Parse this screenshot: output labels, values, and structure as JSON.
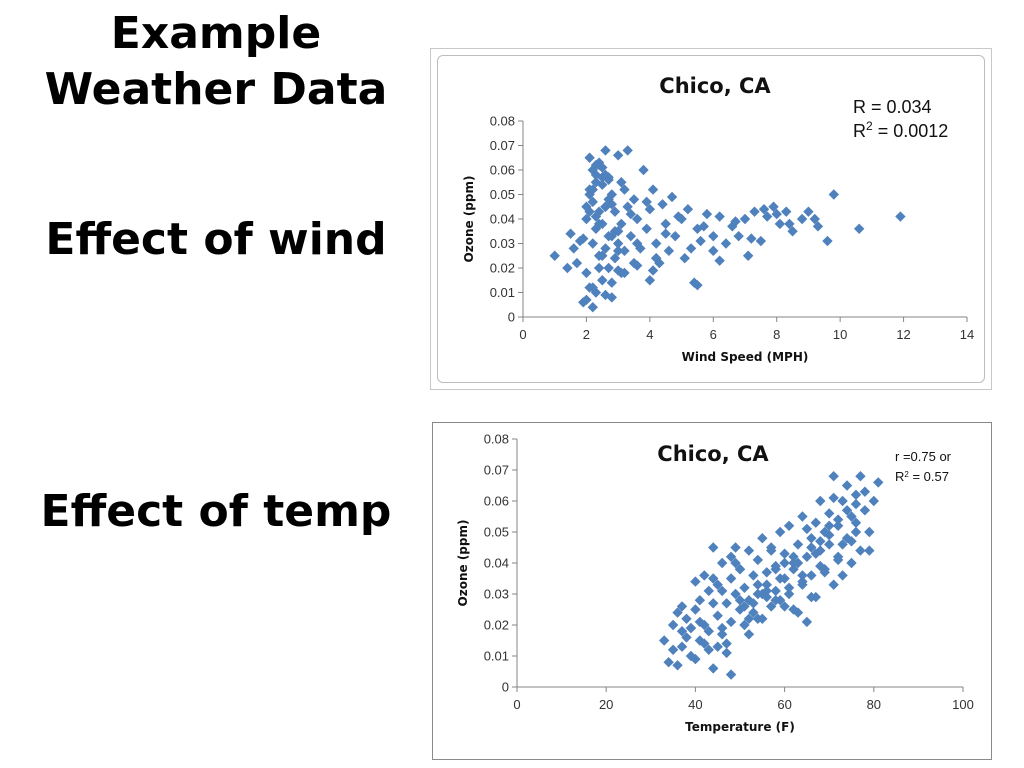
{
  "slide": {
    "title": "Example Weather Data",
    "section_wind": "Effect of wind",
    "section_temp": "Effect of temp"
  },
  "chart_data": [
    {
      "type": "scatter",
      "title": "Chico, CA",
      "xlabel": "Wind Speed (MPH)",
      "ylabel": "Ozone (ppm)",
      "xlim": [
        0,
        14
      ],
      "ylim": [
        0,
        0.08
      ],
      "x_ticks": [
        "0",
        "2",
        "4",
        "6",
        "8",
        "10",
        "12",
        "14"
      ],
      "y_ticks": [
        "0",
        "0.01",
        "0.02",
        "0.03",
        "0.04",
        "0.05",
        "0.06",
        "0.07",
        "0.08"
      ],
      "annotation": [
        "R = 0.034",
        "R",
        "2",
        " =  0.0012"
      ],
      "marker_color": "#4F81BD",
      "grid": false,
      "x": [
        1.0,
        1.4,
        1.5,
        1.6,
        1.7,
        1.8,
        1.9,
        2.0,
        2.0,
        2.0,
        2.1,
        2.1,
        2.1,
        2.2,
        2.2,
        2.2,
        2.3,
        2.3,
        2.3,
        2.4,
        2.4,
        2.4,
        2.5,
        2.5,
        2.5,
        2.6,
        2.6,
        2.6,
        2.7,
        2.7,
        2.7,
        2.8,
        2.8,
        2.9,
        2.9,
        3.0,
        3.0,
        3.1,
        3.1,
        3.2,
        3.2,
        3.3,
        3.3,
        3.4,
        3.5,
        3.5,
        3.6,
        3.7,
        3.8,
        3.9,
        4.0,
        4.0,
        4.1,
        4.2,
        4.3,
        4.4,
        4.5,
        4.6,
        4.7,
        4.8,
        5.0,
        5.1,
        5.2,
        5.4,
        5.5,
        5.6,
        5.8,
        6.0,
        6.0,
        6.2,
        6.4,
        6.6,
        6.8,
        7.0,
        7.1,
        7.3,
        7.5,
        7.7,
        7.9,
        8.1,
        8.3,
        8.5,
        8.8,
        9.0,
        9.3,
        9.6,
        9.8,
        10.6,
        11.9,
        1.9,
        2.1,
        2.3,
        2.5,
        2.7,
        2.9,
        3.1,
        3.4,
        3.6,
        3.9,
        4.2,
        4.5,
        4.9,
        5.3,
        5.7,
        6.2,
        6.7,
        7.2,
        7.6,
        8.0,
        8.4,
        9.2,
        2.2,
        2.4,
        2.6,
        2.8,
        3.0,
        2.1,
        2.3,
        2.5,
        2.2,
        2.4,
        2.6,
        2.8,
        3.2,
        3.6,
        4.1,
        2.0,
        2.2,
        2.4,
        2.6,
        2.8,
        3.0,
        2.3,
        2.5,
        2.7,
        5.5,
        3.0,
        4.2
      ],
      "y": [
        0.025,
        0.02,
        0.034,
        0.028,
        0.022,
        0.031,
        0.006,
        0.007,
        0.018,
        0.04,
        0.065,
        0.012,
        0.052,
        0.004,
        0.047,
        0.03,
        0.01,
        0.058,
        0.036,
        0.025,
        0.062,
        0.043,
        0.015,
        0.054,
        0.038,
        0.068,
        0.028,
        0.045,
        0.02,
        0.057,
        0.033,
        0.008,
        0.05,
        0.024,
        0.043,
        0.066,
        0.03,
        0.038,
        0.018,
        0.052,
        0.027,
        0.045,
        0.068,
        0.033,
        0.022,
        0.048,
        0.04,
        0.028,
        0.06,
        0.036,
        0.015,
        0.044,
        0.052,
        0.03,
        0.022,
        0.046,
        0.038,
        0.027,
        0.049,
        0.033,
        0.04,
        0.024,
        0.044,
        0.014,
        0.036,
        0.031,
        0.042,
        0.033,
        0.027,
        0.041,
        0.03,
        0.037,
        0.033,
        0.04,
        0.025,
        0.043,
        0.031,
        0.041,
        0.045,
        0.038,
        0.043,
        0.035,
        0.04,
        0.043,
        0.037,
        0.031,
        0.05,
        0.036,
        0.041,
        0.032,
        0.043,
        0.055,
        0.025,
        0.048,
        0.035,
        0.055,
        0.042,
        0.03,
        0.047,
        0.024,
        0.034,
        0.041,
        0.028,
        0.037,
        0.023,
        0.039,
        0.032,
        0.044,
        0.042,
        0.038,
        0.04,
        0.06,
        0.063,
        0.058,
        0.046,
        0.035,
        0.05,
        0.041,
        0.057,
        0.012,
        0.02,
        0.009,
        0.014,
        0.018,
        0.021,
        0.019,
        0.045,
        0.052,
        0.038,
        0.045,
        0.033,
        0.027,
        0.062,
        0.061,
        0.056,
        0.013,
        0.019,
        0.024
      ]
    },
    {
      "type": "scatter",
      "title": "Chico, CA",
      "xlabel": "Temperature (F)",
      "ylabel": "Ozone (ppm)",
      "xlim": [
        0,
        100
      ],
      "ylim": [
        0,
        0.08
      ],
      "x_ticks": [
        "0",
        "20",
        "40",
        "60",
        "80",
        "100"
      ],
      "y_ticks": [
        "0",
        "0.01",
        "0.02",
        "0.03",
        "0.04",
        "0.05",
        "0.06",
        "0.07",
        "0.08"
      ],
      "annotation": [
        "r =0.75 or",
        "R",
        "2",
        " = 0.57"
      ],
      "marker_color": "#4F81BD",
      "grid": false,
      "x": [
        33,
        34,
        35,
        35,
        36,
        36,
        37,
        37,
        38,
        38,
        39,
        39,
        40,
        40,
        41,
        41,
        42,
        42,
        43,
        43,
        44,
        44,
        45,
        45,
        46,
        46,
        47,
        47,
        48,
        48,
        48,
        49,
        49,
        50,
        50,
        51,
        51,
        52,
        52,
        53,
        53,
        54,
        54,
        55,
        55,
        56,
        56,
        57,
        57,
        58,
        58,
        59,
        59,
        60,
        60,
        61,
        61,
        62,
        62,
        63,
        63,
        64,
        64,
        65,
        65,
        66,
        66,
        67,
        67,
        68,
        68,
        69,
        69,
        70,
        70,
        71,
        71,
        72,
        72,
        73,
        73,
        74,
        74,
        75,
        75,
        76,
        76,
        77,
        77,
        78,
        78,
        79,
        80,
        81,
        40,
        42,
        44,
        46,
        50,
        52,
        54,
        56,
        58,
        60,
        62,
        64,
        66,
        68,
        70,
        72,
        74,
        76,
        44,
        48,
        52,
        56,
        60,
        64,
        68,
        72,
        76,
        41,
        45,
        49,
        53,
        57,
        61,
        65,
        69,
        73,
        37,
        39,
        43,
        47,
        51,
        55,
        59,
        63,
        67,
        71,
        75,
        79,
        46,
        50,
        54,
        58,
        62,
        66,
        70
      ],
      "y": [
        0.015,
        0.008,
        0.02,
        0.012,
        0.024,
        0.007,
        0.018,
        0.013,
        0.022,
        0.016,
        0.01,
        0.019,
        0.025,
        0.034,
        0.015,
        0.028,
        0.02,
        0.036,
        0.012,
        0.031,
        0.006,
        0.045,
        0.023,
        0.033,
        0.017,
        0.04,
        0.011,
        0.027,
        0.004,
        0.021,
        0.035,
        0.045,
        0.03,
        0.025,
        0.038,
        0.032,
        0.02,
        0.044,
        0.028,
        0.036,
        0.024,
        0.041,
        0.03,
        0.048,
        0.022,
        0.037,
        0.033,
        0.026,
        0.045,
        0.039,
        0.031,
        0.05,
        0.028,
        0.043,
        0.035,
        0.03,
        0.052,
        0.038,
        0.025,
        0.046,
        0.04,
        0.033,
        0.055,
        0.042,
        0.021,
        0.048,
        0.036,
        0.053,
        0.029,
        0.044,
        0.06,
        0.038,
        0.05,
        0.046,
        0.056,
        0.033,
        0.068,
        0.052,
        0.042,
        0.06,
        0.036,
        0.065,
        0.048,
        0.055,
        0.04,
        0.062,
        0.05,
        0.068,
        0.044,
        0.057,
        0.063,
        0.05,
        0.06,
        0.066,
        0.009,
        0.014,
        0.027,
        0.019,
        0.028,
        0.017,
        0.022,
        0.031,
        0.038,
        0.026,
        0.042,
        0.034,
        0.029,
        0.039,
        0.049,
        0.041,
        0.057,
        0.053,
        0.035,
        0.042,
        0.022,
        0.029,
        0.04,
        0.036,
        0.047,
        0.054,
        0.059,
        0.021,
        0.013,
        0.04,
        0.027,
        0.044,
        0.032,
        0.051,
        0.037,
        0.046,
        0.026,
        0.019,
        0.018,
        0.014,
        0.026,
        0.03,
        0.035,
        0.024,
        0.043,
        0.061,
        0.047,
        0.044,
        0.031,
        0.038,
        0.033,
        0.028,
        0.04,
        0.045,
        0.052
      ]
    }
  ]
}
